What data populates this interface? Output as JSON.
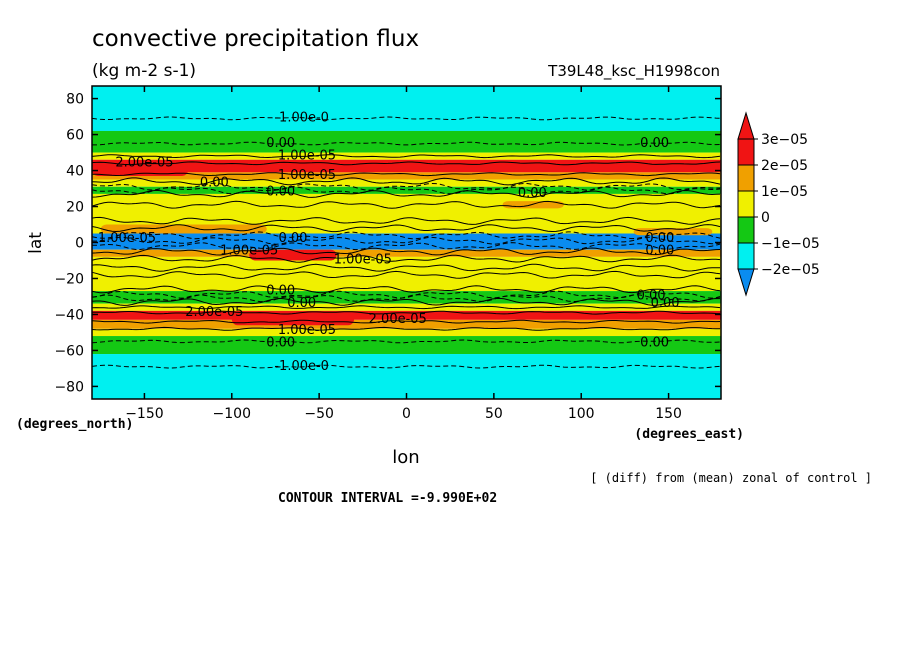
{
  "chart_data": {
    "type": "heatmap",
    "title": "convective precipitation flux",
    "units": "(kg m-2 s-1)",
    "run_label": "T39L48_ksc_H1998con",
    "xlabel": "lon",
    "ylabel": "lat",
    "x_unit_label": "(degrees_east)",
    "y_unit_label": "(degrees_north)",
    "xlim": [
      -180,
      180
    ],
    "ylim": [
      -87,
      87
    ],
    "x_ticks": [
      -150,
      -100,
      -50,
      0,
      50,
      100,
      150
    ],
    "y_ticks": [
      80,
      60,
      40,
      20,
      0,
      -20,
      -40,
      -60,
      -80
    ],
    "contour_interval_text": "CONTOUR INTERVAL =-9.990E+02",
    "footnote": "[ (diff) from (mean) zonal of control ]",
    "colorbar": {
      "levels": [
        -2e-05,
        -1e-05,
        0,
        1e-05,
        2e-05,
        3e-05
      ],
      "level_labels": [
        "−2e−05",
        "−1e−05",
        "0",
        "1e−05",
        "2e−05",
        "3e−05"
      ],
      "colors": [
        "#0a8cf0",
        "#00f0f0",
        "#14c814",
        "#f0f000",
        "#f0a000",
        "#f01414",
        "#1450f0"
      ],
      "lower_arrow_color": "#1450f0",
      "upper_arrow_color": "#f01414"
    },
    "zonal_bands": [
      {
        "lat_from": 87,
        "lat_to": 62,
        "value": -1.5e-05
      },
      {
        "lat_from": 62,
        "lat_to": 50,
        "value": -5e-06
      },
      {
        "lat_from": 50,
        "lat_to": 46,
        "value": 5e-06
      },
      {
        "lat_from": 46,
        "lat_to": 39,
        "value": 2.5e-05
      },
      {
        "lat_from": 39,
        "lat_to": 35,
        "value": 1.5e-05
      },
      {
        "lat_from": 35,
        "lat_to": 31,
        "value": 5e-06
      },
      {
        "lat_from": 31,
        "lat_to": 27,
        "value": -5e-06
      },
      {
        "lat_from": 27,
        "lat_to": 20,
        "value": 5e-06
      },
      {
        "lat_from": 20,
        "lat_to": 5,
        "value": 5e-06
      },
      {
        "lat_from": 5,
        "lat_to": -4,
        "value": -2.5e-05
      },
      {
        "lat_from": -4,
        "lat_to": -8,
        "value": 1.5e-05
      },
      {
        "lat_from": -8,
        "lat_to": -27,
        "value": 5e-06
      },
      {
        "lat_from": -27,
        "lat_to": -34,
        "value": -5e-06
      },
      {
        "lat_from": -34,
        "lat_to": -38,
        "value": 5e-06
      },
      {
        "lat_from": -38,
        "lat_to": -43,
        "value": 2.5e-05
      },
      {
        "lat_from": -43,
        "lat_to": -48,
        "value": 1.5e-05
      },
      {
        "lat_from": -48,
        "lat_to": -52,
        "value": 5e-06
      },
      {
        "lat_from": -52,
        "lat_to": -62,
        "value": -5e-06
      },
      {
        "lat_from": -62,
        "lat_to": -87,
        "value": -1.5e-05
      }
    ],
    "patches": [
      {
        "lon_from": -180,
        "lon_to": -125,
        "lat_from": 44,
        "lat_to": 37,
        "value": 2.5e-05
      },
      {
        "lon_from": -100,
        "lon_to": -30,
        "lat_from": -39,
        "lat_to": -46,
        "value": 2.5e-05
      },
      {
        "lon_from": -175,
        "lon_to": -80,
        "lat_from": 10,
        "lat_to": 5,
        "value": 1.5e-05
      },
      {
        "lon_from": 55,
        "lon_to": 90,
        "lat_from": 23,
        "lat_to": 19,
        "value": 1.5e-05
      },
      {
        "lon_from": 130,
        "lon_to": 175,
        "lat_from": 8,
        "lat_to": 4,
        "value": 1.5e-05
      },
      {
        "lon_from": -90,
        "lon_to": -40,
        "lat_from": -4,
        "lat_to": -10,
        "value": 2.5e-05
      }
    ],
    "contour_lines_lat": [
      69,
      55,
      48,
      44,
      38,
      34,
      31,
      29,
      27,
      21,
      12,
      8,
      4,
      1,
      -2,
      -5,
      -9,
      -14,
      -18,
      -26,
      -29,
      -31,
      -33,
      -36,
      -39,
      -44,
      -48,
      -55,
      -69
    ],
    "dashed_contours_lat": [
      69,
      55,
      31,
      29,
      4,
      1,
      -2,
      -29,
      -31,
      -55,
      -69
    ],
    "contour_labels": [
      {
        "text": "-1.00e-0",
        "lon": -60,
        "lat": 70
      },
      {
        "text": "0.00",
        "lon": -72,
        "lat": 56
      },
      {
        "text": "0.00",
        "lon": 142,
        "lat": 56
      },
      {
        "text": "1.00e-05",
        "lon": -57,
        "lat": 49
      },
      {
        "text": "2.00e-05",
        "lon": -150,
        "lat": 45
      },
      {
        "text": "1.00e-05",
        "lon": -57,
        "lat": 38
      },
      {
        "text": "0.00",
        "lon": -110,
        "lat": 34
      },
      {
        "text": "0.00",
        "lon": -72,
        "lat": 29
      },
      {
        "text": "0.00",
        "lon": 72,
        "lat": 28
      },
      {
        "text": "1.00e-05",
        "lon": -160,
        "lat": 3
      },
      {
        "text": "0.00",
        "lon": -65,
        "lat": 3
      },
      {
        "text": "0.00",
        "lon": 145,
        "lat": 3
      },
      {
        "text": "1.00e-05",
        "lon": -90,
        "lat": -4
      },
      {
        "text": "0.00",
        "lon": 145,
        "lat": -4
      },
      {
        "text": "1.00e-05",
        "lon": -25,
        "lat": -9
      },
      {
        "text": "0.00",
        "lon": -72,
        "lat": -26
      },
      {
        "text": "0.00",
        "lon": -60,
        "lat": -33
      },
      {
        "text": "0.00",
        "lon": 140,
        "lat": -29
      },
      {
        "text": "0.00",
        "lon": 148,
        "lat": -33
      },
      {
        "text": "2.00e-05",
        "lon": -110,
        "lat": -38
      },
      {
        "text": "2.00e-05",
        "lon": -5,
        "lat": -42
      },
      {
        "text": "1.00e-05",
        "lon": -57,
        "lat": -48
      },
      {
        "text": "0.00",
        "lon": -72,
        "lat": -55
      },
      {
        "text": "0.00",
        "lon": 142,
        "lat": -55
      },
      {
        "text": "-1.00e-0",
        "lon": -60,
        "lat": -68
      }
    ]
  }
}
